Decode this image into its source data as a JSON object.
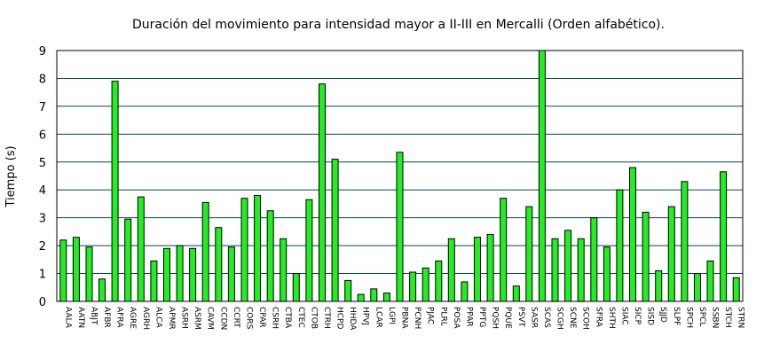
{
  "chart_data": {
    "type": "bar",
    "title": "Duración del movimiento para intensidad mayor a II-III en Mercalli (Orden alfabético).",
    "xlabel": "",
    "ylabel": "Tiempo (s)",
    "ylim": [
      0,
      9
    ],
    "yticks": [
      "0",
      "1",
      "2",
      "3",
      "4",
      "5",
      "6",
      "7",
      "8",
      "9"
    ],
    "grid": "horizontal",
    "legend": "none",
    "bar_color": "#22ee22",
    "bar_outline": "#000000",
    "grid_color": "#004466",
    "categories": [
      "AALA",
      "AATN",
      "ABJT",
      "AFBR",
      "AFRA",
      "AGRE",
      "AGRH",
      "ALCA",
      "APMR",
      "ASRH",
      "ASRM",
      "CAVM",
      "CCDN",
      "CCRT",
      "CORS",
      "CPAR",
      "CSRH",
      "CTBA",
      "CTEC",
      "CTOB",
      "CTRH",
      "HCPD",
      "HHDA",
      "HPVJ",
      "LCAR",
      "LGPI",
      "PBNA",
      "PCNH",
      "PJAC",
      "PLRL",
      "POSA",
      "PPAR",
      "PPTG",
      "PQSH",
      "PQUE",
      "PSVT",
      "SASR",
      "SCAS",
      "SCGH",
      "SCNE",
      "SCOH",
      "SFRA",
      "SHTH",
      "SIAC",
      "SICP",
      "SISD",
      "SJJD",
      "SLPF",
      "SPCH",
      "SPCL",
      "SSBN",
      "STCH",
      "STRN"
    ],
    "values": [
      2.2,
      2.3,
      1.95,
      0.8,
      7.9,
      2.95,
      3.75,
      1.45,
      1.9,
      2.0,
      1.9,
      3.55,
      2.65,
      1.95,
      3.7,
      3.8,
      3.25,
      2.25,
      1.0,
      3.65,
      7.8,
      5.1,
      0.75,
      0.25,
      0.45,
      0.3,
      5.35,
      1.05,
      1.2,
      1.45,
      2.25,
      0.7,
      2.3,
      2.4,
      3.7,
      0.55,
      3.4,
      9.0,
      2.25,
      2.55,
      2.25,
      3.0,
      1.95,
      4.0,
      4.8,
      3.2,
      1.1,
      3.4,
      4.3,
      1.0,
      1.45,
      4.65,
      0.85
    ]
  }
}
